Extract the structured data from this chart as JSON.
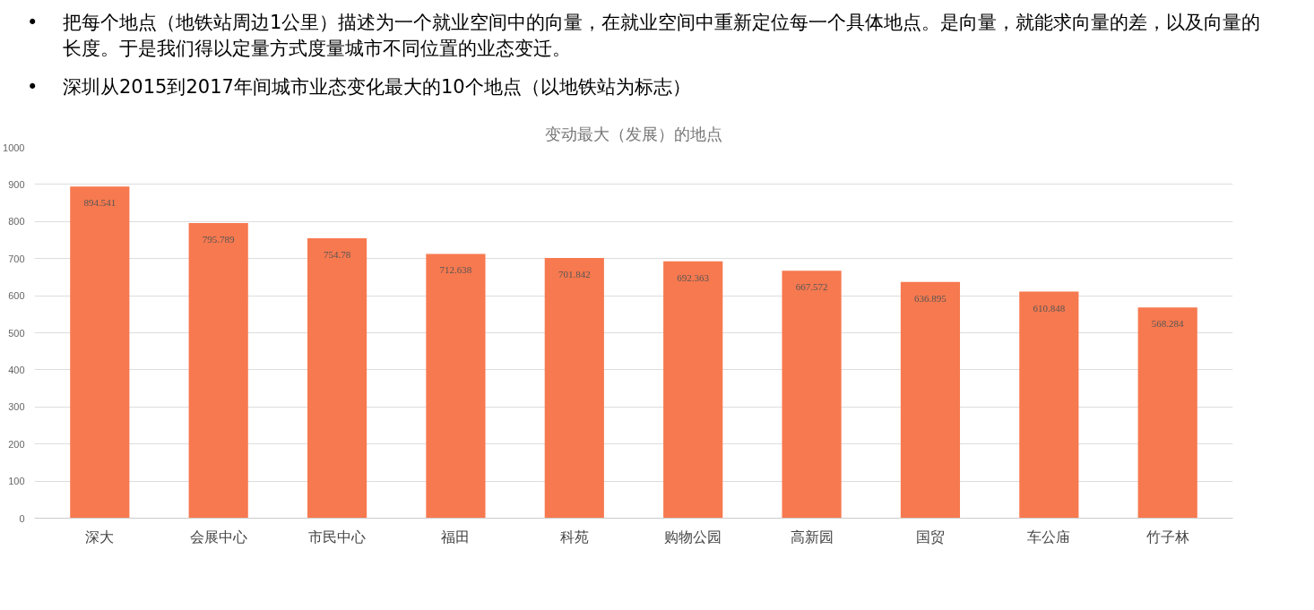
{
  "chart_data": {
    "type": "bar",
    "title": "变动最大（发展）的地点",
    "annotations": [
      "•\t把每个地点（地铁站周边1公里）描述为一个就业空间中的向量，在就业空间中重新定位每一个具体地点。是向量，就能求向量的差，以及向量的长度。于是我们得以定量方式度量城市不同位置的业态变迁。",
      "•\t深圳从2015到2017年间城市业态变化最大的10个地点（以地铁站为标志）"
    ],
    "categories": [
      "深大",
      "会展中心",
      "市民中心",
      "福田",
      "科苑",
      "购物公园",
      "高新园",
      "国贸",
      "车公庙",
      "竹子林"
    ],
    "values": [
      894.541,
      795.789,
      754.78,
      712.638,
      701.842,
      692.363,
      667.572,
      636.895,
      610.848,
      568.284
    ],
    "color": "#f7794f",
    "ylim": [
      0,
      1000
    ],
    "yticks": [
      0,
      100,
      200,
      300,
      400,
      500,
      600,
      700,
      800,
      900,
      1000
    ],
    "grid": "y",
    "data_labels": true
  }
}
